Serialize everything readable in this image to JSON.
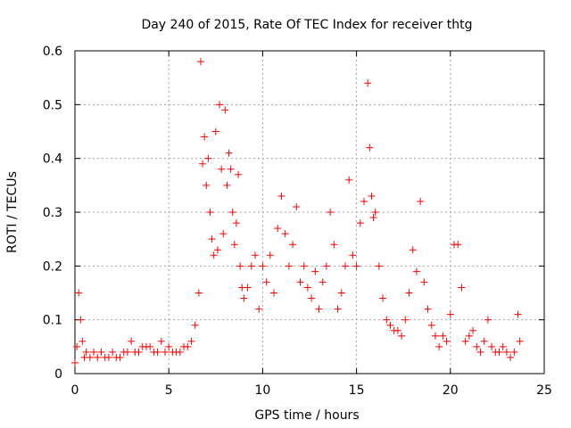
{
  "chart_data": {
    "type": "scatter",
    "title": "Day 240 of 2015, Rate Of TEC Index for receiver thtg",
    "xlabel": "GPS time / hours",
    "ylabel": "ROTI / TECUs",
    "xlim": [
      0,
      25
    ],
    "ylim": [
      0,
      0.6
    ],
    "x_ticks": [
      "0",
      "5",
      "10",
      "15",
      "20",
      "25"
    ],
    "y_ticks": [
      "0",
      "0.1",
      "0.2",
      "0.3",
      "0.4",
      "0.5",
      "0.6"
    ],
    "grid": true,
    "marker": "plus",
    "color": "#ff0000",
    "series": [
      {
        "x": [
          0.0,
          0.1,
          0.2,
          0.3,
          0.4,
          0.5,
          0.6,
          0.8,
          1.0,
          1.2,
          1.4,
          1.6,
          1.8,
          2.0,
          2.2,
          2.4,
          2.6,
          2.8,
          3.0,
          3.2,
          3.4,
          3.6,
          3.8,
          4.0,
          4.2,
          4.4,
          4.6,
          4.8,
          5.0,
          5.2,
          5.4,
          5.6,
          5.8,
          6.0,
          6.2,
          6.4,
          6.6,
          6.7,
          6.8,
          6.9,
          7.0,
          7.1,
          7.2,
          7.3,
          7.4,
          7.5,
          7.6,
          7.7,
          7.8,
          7.9,
          8.0,
          8.1,
          8.2,
          8.3,
          8.4,
          8.5,
          8.6,
          8.7,
          8.8,
          8.9,
          9.0,
          9.2,
          9.4,
          9.6,
          9.8,
          10.0,
          10.2,
          10.4,
          10.6,
          10.8,
          11.0,
          11.2,
          11.4,
          11.6,
          11.8,
          12.0,
          12.2,
          12.4,
          12.6,
          12.8,
          13.0,
          13.2,
          13.4,
          13.6,
          13.8,
          14.0,
          14.2,
          14.4,
          14.6,
          14.8,
          15.0,
          15.2,
          15.4,
          15.6,
          15.7,
          15.8,
          15.9,
          16.0,
          16.2,
          16.4,
          16.6,
          16.8,
          17.0,
          17.2,
          17.4,
          17.6,
          17.8,
          18.0,
          18.2,
          18.4,
          18.6,
          18.8,
          19.0,
          19.2,
          19.4,
          19.6,
          19.8,
          20.0,
          20.2,
          20.4,
          20.6,
          20.8,
          21.0,
          21.2,
          21.4,
          21.6,
          21.8,
          22.0,
          22.2,
          22.4,
          22.6,
          22.8,
          23.0,
          23.2,
          23.4,
          23.6,
          23.7
        ],
        "y": [
          0.02,
          0.05,
          0.15,
          0.1,
          0.06,
          0.03,
          0.04,
          0.03,
          0.04,
          0.03,
          0.04,
          0.03,
          0.03,
          0.04,
          0.03,
          0.03,
          0.04,
          0.04,
          0.06,
          0.04,
          0.04,
          0.05,
          0.05,
          0.05,
          0.04,
          0.04,
          0.06,
          0.04,
          0.05,
          0.04,
          0.04,
          0.04,
          0.05,
          0.05,
          0.06,
          0.09,
          0.15,
          0.58,
          0.39,
          0.44,
          0.35,
          0.4,
          0.3,
          0.25,
          0.22,
          0.45,
          0.23,
          0.5,
          0.38,
          0.26,
          0.49,
          0.35,
          0.41,
          0.38,
          0.3,
          0.24,
          0.28,
          0.37,
          0.2,
          0.16,
          0.14,
          0.16,
          0.2,
          0.22,
          0.12,
          0.2,
          0.17,
          0.22,
          0.15,
          0.27,
          0.33,
          0.26,
          0.2,
          0.24,
          0.31,
          0.17,
          0.2,
          0.16,
          0.14,
          0.19,
          0.12,
          0.17,
          0.2,
          0.3,
          0.24,
          0.12,
          0.15,
          0.2,
          0.36,
          0.22,
          0.2,
          0.28,
          0.32,
          0.54,
          0.42,
          0.33,
          0.29,
          0.3,
          0.2,
          0.14,
          0.1,
          0.09,
          0.08,
          0.08,
          0.07,
          0.1,
          0.15,
          0.23,
          0.19,
          0.32,
          0.17,
          0.12,
          0.09,
          0.07,
          0.05,
          0.07,
          0.06,
          0.11,
          0.24,
          0.24,
          0.16,
          0.06,
          0.07,
          0.08,
          0.05,
          0.04,
          0.06,
          0.1,
          0.05,
          0.04,
          0.04,
          0.05,
          0.04,
          0.03,
          0.04,
          0.11,
          0.06
        ]
      }
    ]
  }
}
